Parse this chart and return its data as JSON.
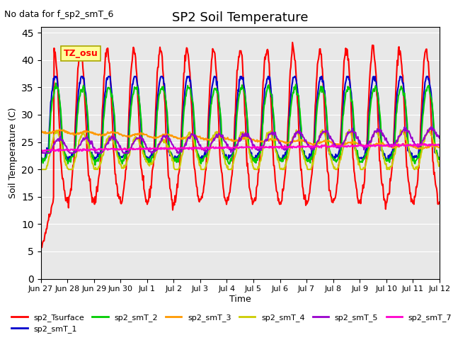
{
  "title": "SP2 Soil Temperature",
  "ylabel": "Soil Temperature (C)",
  "xlabel": "Time",
  "no_data_note": "No data for f_sp2_smT_6",
  "tz_label": "TZ_osu",
  "ylim": [
    0,
    46
  ],
  "yticks": [
    0,
    5,
    10,
    15,
    20,
    25,
    30,
    35,
    40,
    45
  ],
  "background_color": "#e8e8e8",
  "plot_bg_color": "#e8e8e8",
  "series": {
    "sp2_Tsurface": {
      "color": "#ff0000",
      "linewidth": 1.5
    },
    "sp2_smT_1": {
      "color": "#0000cc",
      "linewidth": 1.5
    },
    "sp2_smT_2": {
      "color": "#00cc00",
      "linewidth": 1.5
    },
    "sp2_smT_3": {
      "color": "#ff9900",
      "linewidth": 1.5
    },
    "sp2_smT_4": {
      "color": "#cccc00",
      "linewidth": 1.5
    },
    "sp2_smT_5": {
      "color": "#9900cc",
      "linewidth": 1.5
    },
    "sp2_smT_7": {
      "color": "#ff00cc",
      "linewidth": 1.5
    }
  },
  "x_tick_labels": [
    "Jun 27",
    "Jun 28",
    "Jun 29",
    "Jun 30",
    "Jul 1",
    "Jul 2",
    "Jul 3",
    "Jul 4",
    "Jul 5",
    "Jul 6",
    "Jul 7",
    "Jul 8",
    "Jul 9",
    "Jul 10",
    "Jul 11",
    "Jul 12"
  ],
  "n_days": 15
}
